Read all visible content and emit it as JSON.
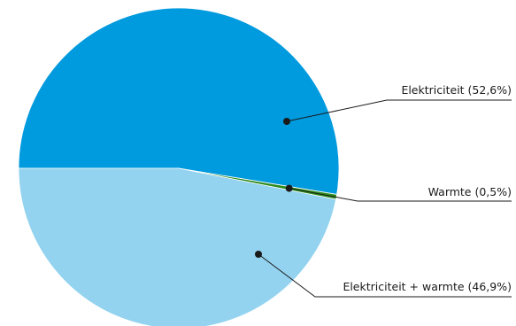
{
  "chart_data": {
    "type": "pie",
    "slices": [
      {
        "label": "Elektriciteit (52,6%)",
        "name": "Elektriciteit",
        "value": 52.6,
        "color": "#009ade"
      },
      {
        "label": "Warmte (0,5%)",
        "name": "Warmte",
        "value": 0.5,
        "color": "#2e8b1e"
      },
      {
        "label": "Elektriciteit + warmte (46,9%)",
        "name": "Elektriciteit + warmte",
        "value": 46.9,
        "color": "#93d3ef"
      }
    ],
    "start": "left (9 o'clock)",
    "direction": "clockwise"
  }
}
